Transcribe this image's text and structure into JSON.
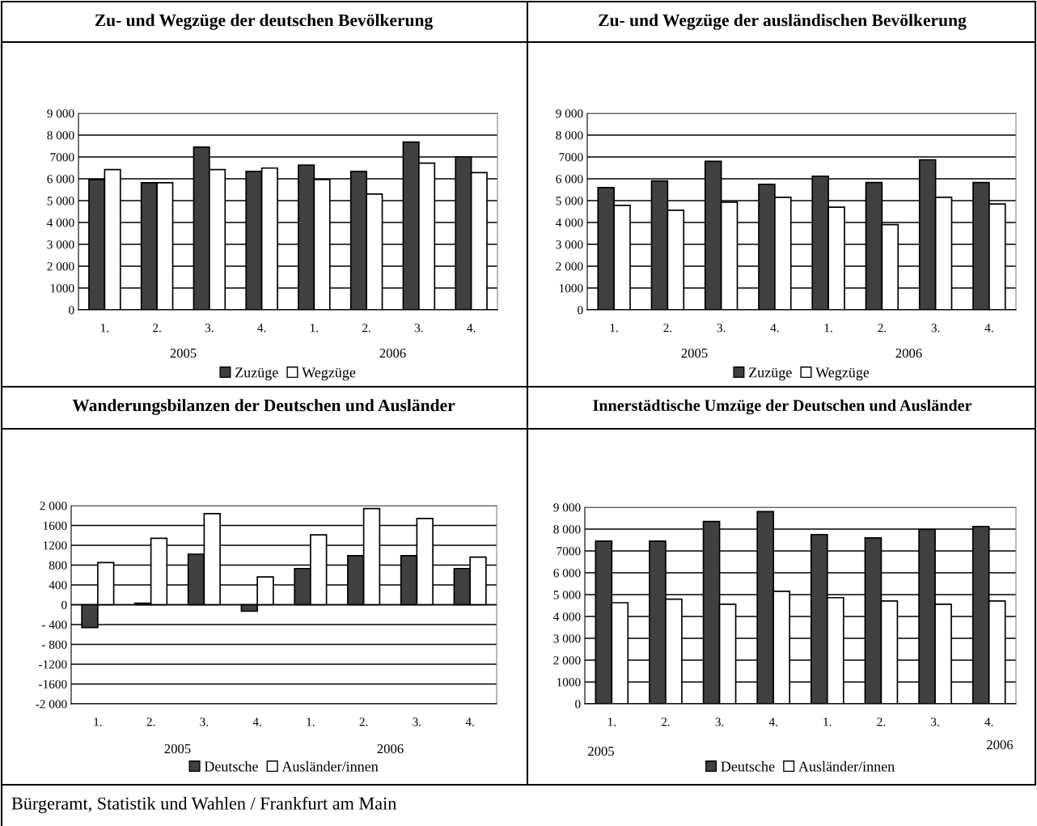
{
  "chart_data": [
    {
      "type": "bar",
      "title": "Zu- und Wegzüge der deutschen Bevölkerung",
      "categories": [
        "1.",
        "2.",
        "3.",
        "4.",
        "1.",
        "2.",
        "3.",
        "4."
      ],
      "series": [
        {
          "name": "Zuzüge",
          "color": "#404040",
          "values": [
            5970,
            5820,
            7450,
            6340,
            6630,
            6340,
            7680,
            7000
          ]
        },
        {
          "name": "Wegzüge",
          "color": "#ffffff",
          "values": [
            6420,
            5820,
            6420,
            6490,
            5970,
            5300,
            6720,
            6280
          ]
        }
      ],
      "ylim": [
        0,
        9000
      ],
      "yticks": [
        0,
        {
          "value": 1000,
          "label": "1000"
        },
        {
          "value": 2000,
          "label": "2 000"
        },
        {
          "value": 3000,
          "label": "3 000"
        },
        {
          "value": 4000,
          "label": "4 000"
        },
        {
          "value": 5000,
          "label": "5 000"
        },
        {
          "value": 6000,
          "label": "6 000"
        },
        {
          "value": 7000,
          "label": "7000"
        },
        {
          "value": 8000,
          "label": "8 000"
        },
        {
          "value": 9000,
          "label": "9 000"
        }
      ],
      "grid": "y",
      "legend": "bottom",
      "annotations": [
        "2005",
        "2006"
      ]
    },
    {
      "type": "bar",
      "title": "Zu- und Wegzüge der ausländischen Bevölkerung",
      "categories": [
        "1.",
        "2.",
        "3.",
        "4.",
        "1.",
        "2.",
        "3.",
        "4."
      ],
      "series": [
        {
          "name": "Zuzüge",
          "color": "#404040",
          "values": [
            5600,
            5900,
            6800,
            5750,
            6120,
            5830,
            6870,
            5830
          ]
        },
        {
          "name": "Wegzüge",
          "color": "#ffffff",
          "values": [
            4780,
            4560,
            4930,
            5150,
            4700,
            3900,
            5150,
            4850
          ]
        }
      ],
      "ylim": [
        0,
        9000
      ],
      "yticks": [
        0,
        {
          "value": 1000,
          "label": "1000"
        },
        {
          "value": 2000,
          "label": "2 000"
        },
        {
          "value": 3000,
          "label": "3 000"
        },
        {
          "value": 4000,
          "label": "4 000"
        },
        {
          "value": 5000,
          "label": "5 000"
        },
        {
          "value": 6000,
          "label": "6 000"
        },
        {
          "value": 7000,
          "label": "7000"
        },
        {
          "value": 8000,
          "label": "8 000"
        },
        {
          "value": 9000,
          "label": "9 000"
        }
      ],
      "grid": "y",
      "legend": "bottom",
      "annotations": [
        "2005",
        "2006"
      ]
    },
    {
      "type": "bar",
      "title": "Wanderungsbilanzen der Deutschen und Ausländer",
      "categories": [
        "1.",
        "2.",
        "3.",
        "4.",
        "1.",
        "2.",
        "3.",
        "4."
      ],
      "series": [
        {
          "name": "Deutsche",
          "color": "#404040",
          "values": [
            -460,
            30,
            1020,
            -130,
            730,
            990,
            990,
            730
          ]
        },
        {
          "name": "Ausländer/innen",
          "color": "#ffffff",
          "values": [
            850,
            1340,
            1840,
            560,
            1410,
            1940,
            1740,
            960
          ]
        }
      ],
      "ylim": [
        -2000,
        2000
      ],
      "yticks": [
        {
          "value": -2000,
          "label": "-2 000"
        },
        -1600,
        -1200,
        {
          "value": -800,
          "label": "- 800"
        },
        {
          "value": -400,
          "label": "- 400"
        },
        0,
        400,
        800,
        1200,
        1600,
        {
          "value": 2000,
          "label": "2 000"
        }
      ],
      "grid": "y",
      "legend": "bottom",
      "annotations": [
        "2005",
        "2006"
      ]
    },
    {
      "type": "bar",
      "title": "Innerstädtische Umzüge der Deutschen und Ausländer",
      "categories": [
        "1.",
        "2.",
        "3.",
        "4.",
        "1.",
        "2.",
        "3.",
        "4."
      ],
      "series": [
        {
          "name": "Deutsche",
          "color": "#404040",
          "values": [
            7450,
            7450,
            8350,
            8800,
            7750,
            7600,
            7980,
            8120
          ]
        },
        {
          "name": "Ausländer/innen",
          "color": "#ffffff",
          "values": [
            4630,
            4790,
            4560,
            5150,
            4860,
            4710,
            4560,
            4710
          ]
        }
      ],
      "ylim": [
        0,
        9000
      ],
      "yticks": [
        0,
        {
          "value": 1000,
          "label": "1000"
        },
        {
          "value": 2000,
          "label": "2 000"
        },
        {
          "value": 3000,
          "label": "3 000"
        },
        {
          "value": 4000,
          "label": "4 000"
        },
        {
          "value": 5000,
          "label": "5 000"
        },
        {
          "value": 6000,
          "label": "6 000"
        },
        {
          "value": 7000,
          "label": "7000"
        },
        {
          "value": 8000,
          "label": "8 000"
        },
        {
          "value": 9000,
          "label": "9 000"
        }
      ],
      "grid": "y",
      "legend": "bottom",
      "annotations": [
        "2005",
        "2006",
        "Bürgeramt, Statistik und Wahlen / Frankfurt am Main"
      ]
    }
  ]
}
